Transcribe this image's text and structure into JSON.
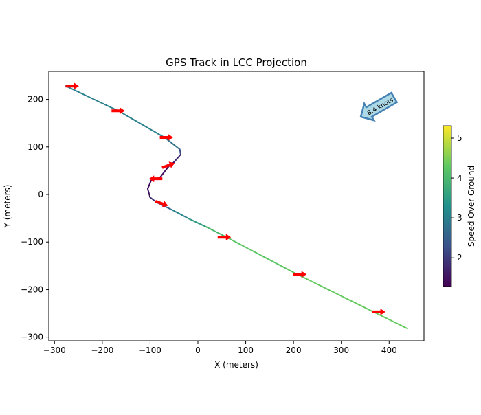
{
  "chart_data": {
    "type": "line",
    "title": "GPS Track in LCC Projection",
    "xlabel": "X (meters)",
    "ylabel": "Y (meters)",
    "xlim": [
      -315,
      475
    ],
    "ylim": [
      -308,
      259
    ],
    "xticks": [
      -300,
      -200,
      -100,
      0,
      100,
      200,
      300,
      400
    ],
    "yticks": [
      -300,
      -200,
      -100,
      0,
      100,
      200
    ],
    "track": [
      {
        "x": -276,
        "y": 228,
        "s": 3.0
      },
      {
        "x": -165,
        "y": 175,
        "s": 3.0
      },
      {
        "x": -70,
        "y": 120,
        "s": 3.0
      },
      {
        "x": -38,
        "y": 95,
        "s": 2.6
      },
      {
        "x": -36,
        "y": 84,
        "s": 2.0
      },
      {
        "x": -50,
        "y": 68,
        "s": 1.5
      },
      {
        "x": -62,
        "y": 58,
        "s": 1.4
      },
      {
        "x": -79,
        "y": 36,
        "s": 1.4
      },
      {
        "x": -98,
        "y": 29,
        "s": 1.4
      },
      {
        "x": -105,
        "y": 12,
        "s": 1.4
      },
      {
        "x": -100,
        "y": -6,
        "s": 1.6
      },
      {
        "x": -86,
        "y": -17,
        "s": 2.2
      },
      {
        "x": -55,
        "y": -32,
        "s": 2.9
      },
      {
        "x": -19,
        "y": -51,
        "s": 3.2
      },
      {
        "x": 17,
        "y": -68,
        "s": 3.8
      },
      {
        "x": 60,
        "y": -90,
        "s": 4.2
      },
      {
        "x": 204,
        "y": -166,
        "s": 4.3
      },
      {
        "x": 438,
        "y": -282,
        "s": 4.4
      }
    ],
    "heading_arrows": [
      {
        "x": -263,
        "y": 228,
        "angle": 0
      },
      {
        "x": -167,
        "y": 176,
        "angle": 0
      },
      {
        "x": -66,
        "y": 120,
        "angle": 0
      },
      {
        "x": -62,
        "y": 61,
        "angle": 20
      },
      {
        "x": -88,
        "y": 33,
        "angle": 180
      },
      {
        "x": -76,
        "y": -19,
        "angle": -20
      },
      {
        "x": 55,
        "y": -90,
        "angle": 0
      },
      {
        "x": 213,
        "y": -168,
        "angle": 0
      },
      {
        "x": 378,
        "y": -247,
        "angle": 0
      }
    ],
    "wind_annotation": "8.4 knots",
    "colorbar": {
      "label": "Speed Over Ground",
      "range": [
        1.28,
        5.31
      ],
      "ticks": [
        2,
        3,
        4,
        5
      ]
    }
  }
}
